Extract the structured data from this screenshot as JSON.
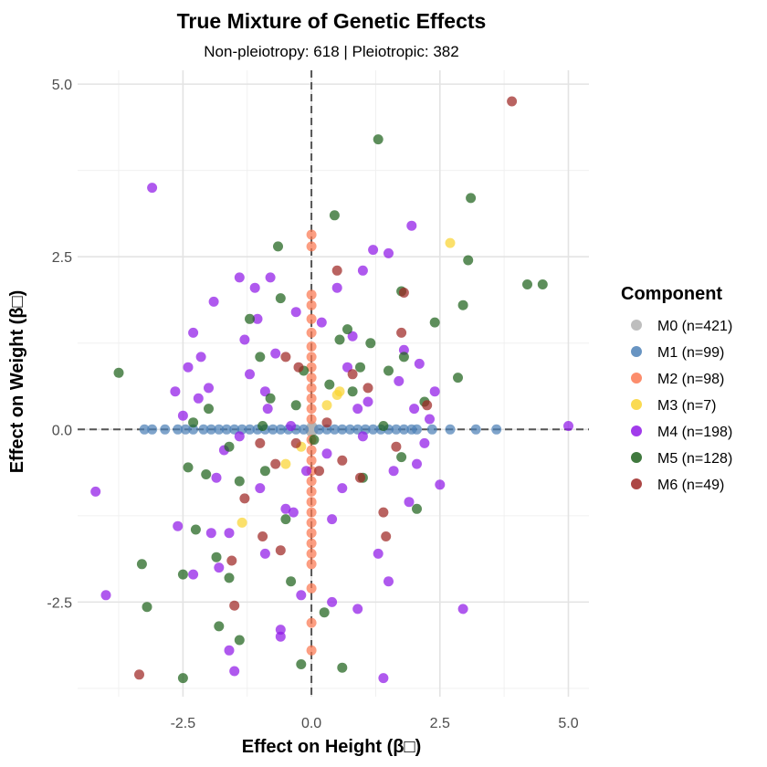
{
  "chart_data": {
    "type": "scatter",
    "title": "True Mixture of Genetic Effects",
    "subtitle": "Non-pleiotropy: 618 | Pleiotropic: 382",
    "xlabel": "Effect on Height (β□)",
    "ylabel": "Effect on Weight (β□)",
    "xlim": [
      -4.55,
      5.4
    ],
    "ylim": [
      -3.87,
      5.2
    ],
    "x_ticks": [
      -2.5,
      0.0,
      2.5,
      5.0
    ],
    "x_tick_labels": [
      "-2.5",
      "0.0",
      "2.5",
      "5.0"
    ],
    "y_ticks": [
      -2.5,
      0.0,
      2.5,
      5.0
    ],
    "y_tick_labels": [
      "-2.5",
      "0.0",
      "2.5",
      "5.0"
    ],
    "grid": true,
    "reference_lines": {
      "x": 0,
      "y": 0,
      "style": "dashed"
    },
    "legend": {
      "title": "Component",
      "placement": "right",
      "entries": [
        {
          "label": "M0 (n=421)",
          "color": "#b3b3b3"
        },
        {
          "label": "M1 (n=99)",
          "color": "#4e81b7"
        },
        {
          "label": "M2 (n=98)",
          "color": "#fb7952"
        },
        {
          "label": "M3 (n=7)",
          "color": "#f9d432"
        },
        {
          "label": "M4 (n=198)",
          "color": "#9019e8"
        },
        {
          "label": "M5 (n=128)",
          "color": "#1e621c"
        },
        {
          "label": "M6 (n=49)",
          "color": "#9e2724"
        }
      ]
    },
    "series": [
      {
        "name": "M0 (n=421)",
        "color": "#b3b3b3",
        "points": [
          [
            0,
            0
          ],
          [
            0.01,
            0.02
          ],
          [
            -0.02,
            0.01
          ],
          [
            0.03,
            -0.02
          ],
          [
            -0.01,
            -0.03
          ],
          [
            0.02,
            0.03
          ],
          [
            -0.03,
            0
          ],
          [
            0.04,
            0.01
          ],
          [
            0,
            -0.04
          ],
          [
            0.01,
            0.05
          ]
        ]
      },
      {
        "name": "M1 (n=99)",
        "color": "#4e81b7",
        "points": [
          [
            -3.25,
            0
          ],
          [
            -3.1,
            0
          ],
          [
            -2.85,
            0
          ],
          [
            -2.6,
            0
          ],
          [
            -2.45,
            0
          ],
          [
            -2.3,
            0
          ],
          [
            -2.1,
            0
          ],
          [
            -1.95,
            0
          ],
          [
            -1.8,
            0
          ],
          [
            -1.65,
            0
          ],
          [
            -1.5,
            0
          ],
          [
            -1.35,
            0
          ],
          [
            -1.2,
            0
          ],
          [
            -1.05,
            0
          ],
          [
            -0.9,
            0
          ],
          [
            -0.75,
            0
          ],
          [
            -0.6,
            0
          ],
          [
            -0.45,
            0
          ],
          [
            -0.3,
            0
          ],
          [
            -0.15,
            0
          ],
          [
            0.15,
            0
          ],
          [
            0.3,
            0
          ],
          [
            0.45,
            0
          ],
          [
            0.6,
            0
          ],
          [
            0.75,
            0
          ],
          [
            0.9,
            0
          ],
          [
            1.05,
            0
          ],
          [
            1.2,
            0
          ],
          [
            1.35,
            0
          ],
          [
            1.5,
            0
          ],
          [
            1.65,
            0
          ],
          [
            1.8,
            0
          ],
          [
            1.95,
            0
          ],
          [
            2.05,
            0
          ],
          [
            2.35,
            0
          ],
          [
            2.7,
            0
          ],
          [
            3.2,
            0
          ],
          [
            3.6,
            0
          ]
        ]
      },
      {
        "name": "M2 (n=98)",
        "color": "#fb7952",
        "points": [
          [
            0,
            2.82
          ],
          [
            0,
            2.65
          ],
          [
            0,
            1.95
          ],
          [
            0,
            1.8
          ],
          [
            0,
            1.6
          ],
          [
            0,
            1.4
          ],
          [
            0,
            1.2
          ],
          [
            0,
            1.05
          ],
          [
            0,
            0.9
          ],
          [
            0,
            0.75
          ],
          [
            0,
            0.6
          ],
          [
            0,
            0.45
          ],
          [
            0,
            0.3
          ],
          [
            0,
            0.15
          ],
          [
            0,
            -0.15
          ],
          [
            0,
            -0.3
          ],
          [
            0,
            -0.45
          ],
          [
            0,
            -0.6
          ],
          [
            0,
            -0.75
          ],
          [
            0,
            -0.9
          ],
          [
            0,
            -1.05
          ],
          [
            0,
            -1.2
          ],
          [
            0,
            -1.35
          ],
          [
            0,
            -1.5
          ],
          [
            0,
            -1.65
          ],
          [
            0,
            -1.8
          ],
          [
            0,
            -1.95
          ],
          [
            0,
            -2.3
          ],
          [
            0,
            -2.8
          ],
          [
            0,
            -3.2
          ]
        ]
      },
      {
        "name": "M3 (n=7)",
        "color": "#f9d432",
        "points": [
          [
            2.7,
            2.7
          ],
          [
            0.5,
            0.5
          ],
          [
            -0.5,
            -0.5
          ],
          [
            -1.35,
            -1.35
          ],
          [
            0.3,
            0.35
          ],
          [
            -0.2,
            -0.25
          ],
          [
            0.55,
            0.55
          ]
        ]
      },
      {
        "name": "M4 (n=198)",
        "color": "#9019e8",
        "points": [
          [
            -3.1,
            3.5
          ],
          [
            -4.2,
            -0.9
          ],
          [
            -4.0,
            -2.4
          ],
          [
            -2.6,
            -1.4
          ],
          [
            -2.5,
            0.2
          ],
          [
            -2.4,
            0.9
          ],
          [
            -2.2,
            0.45
          ],
          [
            -2.3,
            1.4
          ],
          [
            -2.15,
            1.05
          ],
          [
            -2.0,
            0.6
          ],
          [
            -1.9,
            1.85
          ],
          [
            -1.85,
            -0.7
          ],
          [
            -1.7,
            -0.3
          ],
          [
            -1.6,
            -1.5
          ],
          [
            -1.5,
            -3.5
          ],
          [
            -1.4,
            2.2
          ],
          [
            -1.3,
            1.3
          ],
          [
            -1.2,
            0.8
          ],
          [
            -1.1,
            2.05
          ],
          [
            -1.05,
            1.6
          ],
          [
            -1.0,
            -0.85
          ],
          [
            -0.9,
            -1.8
          ],
          [
            -0.85,
            0.3
          ],
          [
            -0.8,
            2.2
          ],
          [
            -0.7,
            1.1
          ],
          [
            -0.6,
            -2.9
          ],
          [
            -0.5,
            -1.15
          ],
          [
            -0.4,
            0.05
          ],
          [
            -0.3,
            1.7
          ],
          [
            -0.2,
            -2.4
          ],
          [
            -0.1,
            -0.6
          ],
          [
            0.2,
            1.55
          ],
          [
            0.3,
            -0.35
          ],
          [
            0.4,
            -1.3
          ],
          [
            0.5,
            2.05
          ],
          [
            0.6,
            -0.85
          ],
          [
            0.7,
            0.9
          ],
          [
            0.8,
            1.35
          ],
          [
            0.9,
            -2.6
          ],
          [
            1.0,
            2.3
          ],
          [
            1.1,
            0.4
          ],
          [
            1.2,
            2.6
          ],
          [
            1.3,
            -1.8
          ],
          [
            1.4,
            -3.6
          ],
          [
            1.5,
            2.55
          ],
          [
            1.6,
            -0.6
          ],
          [
            1.7,
            0.7
          ],
          [
            1.8,
            1.15
          ],
          [
            1.9,
            -1.05
          ],
          [
            1.95,
            2.95
          ],
          [
            2.0,
            0.3
          ],
          [
            2.1,
            0.95
          ],
          [
            2.2,
            -0.2
          ],
          [
            2.3,
            0.15
          ],
          [
            2.4,
            0.55
          ],
          [
            2.5,
            -0.8
          ],
          [
            2.95,
            -2.6
          ],
          [
            5.0,
            0.05
          ],
          [
            -1.8,
            -2.0
          ],
          [
            -2.3,
            -2.1
          ],
          [
            -1.6,
            -3.2
          ],
          [
            -0.6,
            -3.0
          ],
          [
            0.4,
            -2.5
          ],
          [
            -1.4,
            -0.1
          ],
          [
            1.5,
            -2.2
          ],
          [
            2.05,
            -0.5
          ],
          [
            -0.9,
            0.55
          ],
          [
            0.9,
            0.3
          ],
          [
            -2.65,
            0.55
          ],
          [
            -1.95,
            -1.5
          ],
          [
            -0.35,
            -1.2
          ],
          [
            1.0,
            -0.1
          ]
        ]
      },
      {
        "name": "M5 (n=128)",
        "color": "#1e621c",
        "points": [
          [
            -3.75,
            0.82
          ],
          [
            -3.3,
            -1.95
          ],
          [
            -3.2,
            -2.57
          ],
          [
            -2.5,
            -3.6
          ],
          [
            -2.5,
            -2.1
          ],
          [
            -2.4,
            -0.55
          ],
          [
            -2.3,
            0.1
          ],
          [
            -2.25,
            -1.45
          ],
          [
            -2.0,
            0.3
          ],
          [
            -1.85,
            -1.85
          ],
          [
            -1.8,
            -2.85
          ],
          [
            -1.6,
            -2.15
          ],
          [
            -1.4,
            -0.75
          ],
          [
            -1.4,
            -3.05
          ],
          [
            -1.0,
            1.05
          ],
          [
            -0.9,
            -0.6
          ],
          [
            -0.8,
            0.45
          ],
          [
            -0.65,
            2.65
          ],
          [
            -0.6,
            1.9
          ],
          [
            -0.5,
            -1.3
          ],
          [
            -0.4,
            -2.2
          ],
          [
            -0.3,
            0.35
          ],
          [
            -0.2,
            -3.4
          ],
          [
            0.25,
            -2.65
          ],
          [
            0.45,
            3.1
          ],
          [
            0.55,
            1.3
          ],
          [
            0.6,
            -3.45
          ],
          [
            0.7,
            1.45
          ],
          [
            0.8,
            0.55
          ],
          [
            1.0,
            -0.7
          ],
          [
            1.15,
            1.25
          ],
          [
            1.3,
            4.2
          ],
          [
            1.4,
            0.05
          ],
          [
            1.5,
            0.85
          ],
          [
            1.75,
            2.0
          ],
          [
            1.8,
            1.05
          ],
          [
            2.05,
            -1.15
          ],
          [
            2.2,
            0.4
          ],
          [
            2.4,
            1.55
          ],
          [
            2.85,
            0.75
          ],
          [
            2.95,
            1.8
          ],
          [
            3.05,
            2.45
          ],
          [
            3.1,
            3.35
          ],
          [
            4.2,
            2.1
          ],
          [
            4.5,
            2.1
          ],
          [
            -2.05,
            -0.65
          ],
          [
            -1.6,
            -0.25
          ],
          [
            -0.15,
            0.85
          ],
          [
            0.05,
            -0.15
          ],
          [
            0.35,
            0.65
          ],
          [
            1.75,
            -0.4
          ],
          [
            -0.95,
            0.05
          ],
          [
            -1.2,
            1.6
          ],
          [
            0.95,
            0.9
          ]
        ]
      },
      {
        "name": "M6 (n=49)",
        "color": "#9e2724",
        "points": [
          [
            3.9,
            4.75
          ],
          [
            -3.35,
            -3.55
          ],
          [
            -1.55,
            -1.9
          ],
          [
            -1.5,
            -2.55
          ],
          [
            -1.3,
            -1.0
          ],
          [
            -0.95,
            -1.55
          ],
          [
            -0.7,
            -0.5
          ],
          [
            -0.5,
            1.05
          ],
          [
            -0.3,
            -0.2
          ],
          [
            -0.25,
            0.9
          ],
          [
            0.15,
            -0.6
          ],
          [
            0.3,
            0.1
          ],
          [
            0.5,
            2.3
          ],
          [
            0.8,
            0.8
          ],
          [
            0.95,
            -0.7
          ],
          [
            1.4,
            -1.2
          ],
          [
            1.45,
            -1.55
          ],
          [
            1.65,
            -0.25
          ],
          [
            1.75,
            1.4
          ],
          [
            1.8,
            1.98
          ],
          [
            2.25,
            0.35
          ],
          [
            -0.6,
            -1.75
          ],
          [
            -1.0,
            -0.2
          ],
          [
            0.6,
            -0.45
          ],
          [
            1.1,
            0.6
          ]
        ]
      }
    ]
  }
}
